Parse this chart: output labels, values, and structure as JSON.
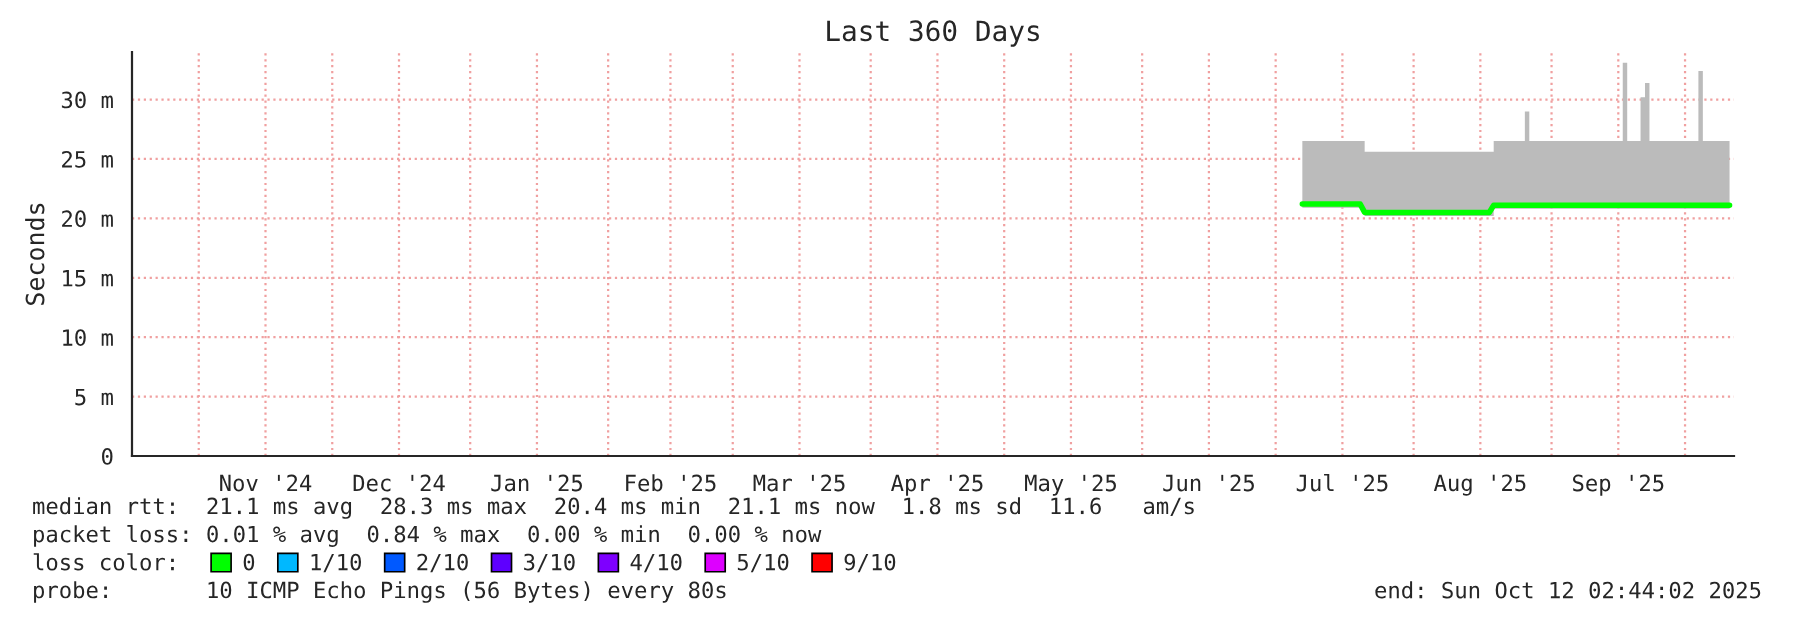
{
  "chart_data": {
    "type": "line",
    "title": "Last 360 Days",
    "ylabel": "Seconds",
    "legend_title": "loss color:",
    "legend": "bottom",
    "grid": true,
    "x": [
      "2025-07-07",
      "2025-07-20",
      "2025-07-21",
      "2025-08-18",
      "2025-08-19",
      "2025-08-25",
      "2025-08-26",
      "2025-08-27",
      "2025-09-16",
      "2025-09-17",
      "2025-09-18",
      "2025-09-20",
      "2025-09-21",
      "2025-09-22",
      "2025-09-23",
      "2025-10-03",
      "2025-10-04",
      "2025-10-05",
      "2025-10-11"
    ],
    "series": [
      {
        "name": "0",
        "color": "#00ff00",
        "values": [
          21.2,
          21.2,
          20.5,
          20.5,
          21.1,
          21.1,
          21.1,
          21.1,
          21.1,
          21.1,
          21.1,
          21.1,
          21.1,
          21.1,
          21.1,
          21.1,
          21.1,
          21.1,
          21.1
        ],
        "lower": [
          20.9,
          20.9,
          20.2,
          20.2,
          20.8,
          20.8,
          20.8,
          20.8,
          20.8,
          20.8,
          20.8,
          20.8,
          20.8,
          20.8,
          20.8,
          20.8,
          20.8,
          20.8,
          20.8
        ],
        "upper": [
          26.5,
          26.5,
          25.6,
          25.6,
          26.5,
          26.5,
          29.0,
          26.5,
          26.5,
          33.1,
          26.5,
          26.5,
          30.2,
          31.4,
          26.5,
          26.5,
          32.4,
          26.5,
          26.5
        ]
      },
      {
        "name": "1/10",
        "color": "#00b8ff",
        "values": [
          null,
          null,
          null,
          null,
          null,
          null,
          null,
          null,
          null,
          null,
          null,
          null,
          null,
          null,
          null,
          null,
          null,
          null,
          null
        ]
      },
      {
        "name": "2/10",
        "color": "#0059ff",
        "values": [
          null,
          null,
          null,
          null,
          null,
          null,
          null,
          null,
          null,
          null,
          null,
          null,
          null,
          null,
          null,
          null,
          null,
          null,
          null
        ]
      },
      {
        "name": "3/10",
        "color": "#5e00ff",
        "values": [
          null,
          null,
          null,
          null,
          null,
          null,
          null,
          null,
          null,
          null,
          null,
          null,
          null,
          null,
          null,
          null,
          null,
          null,
          null
        ]
      },
      {
        "name": "4/10",
        "color": "#7e00ff",
        "values": [
          null,
          null,
          null,
          null,
          null,
          null,
          null,
          null,
          null,
          null,
          null,
          null,
          null,
          null,
          null,
          null,
          null,
          null,
          null
        ]
      },
      {
        "name": "5/10",
        "color": "#dd00ff",
        "values": [
          null,
          null,
          null,
          null,
          null,
          null,
          null,
          null,
          null,
          null,
          null,
          null,
          null,
          null,
          null,
          null,
          null,
          null,
          null
        ]
      },
      {
        "name": "9/10",
        "color": "#ff0000",
        "values": [
          null,
          null,
          null,
          null,
          null,
          null,
          null,
          null,
          null,
          null,
          null,
          null,
          null,
          null,
          null,
          null,
          null,
          null,
          null
        ]
      }
    ],
    "xlim": [
      "2024-10-17",
      "2025-10-12"
    ],
    "xticks": [
      {
        "value": "2024-11-01",
        "label": null
      },
      {
        "value": "2024-11-16",
        "label": "Nov '24"
      },
      {
        "value": "2024-12-01",
        "label": null
      },
      {
        "value": "2024-12-16",
        "label": "Dec '24"
      },
      {
        "value": "2025-01-01",
        "label": null
      },
      {
        "value": "2025-01-16",
        "label": "Jan '25"
      },
      {
        "value": "2025-02-01",
        "label": null
      },
      {
        "value": "2025-02-15",
        "label": "Feb '25"
      },
      {
        "value": "2025-03-01",
        "label": null
      },
      {
        "value": "2025-03-16",
        "label": "Mar '25"
      },
      {
        "value": "2025-04-01",
        "label": null
      },
      {
        "value": "2025-04-16",
        "label": "Apr '25"
      },
      {
        "value": "2025-05-01",
        "label": null
      },
      {
        "value": "2025-05-16",
        "label": "May '25"
      },
      {
        "value": "2025-06-01",
        "label": null
      },
      {
        "value": "2025-06-16",
        "label": "Jun '25"
      },
      {
        "value": "2025-07-01",
        "label": null
      },
      {
        "value": "2025-07-16",
        "label": "Jul '25"
      },
      {
        "value": "2025-08-01",
        "label": null
      },
      {
        "value": "2025-08-16",
        "label": "Aug '25"
      },
      {
        "value": "2025-09-01",
        "label": null
      },
      {
        "value": "2025-09-16",
        "label": "Sep '25"
      },
      {
        "value": "2025-10-01",
        "label": null
      }
    ],
    "ylim": [
      0,
      34
    ],
    "yticks": [
      0,
      {
        "value": 5,
        "label": "5 m"
      },
      {
        "value": 10,
        "label": "10 m"
      },
      {
        "value": 15,
        "label": "15 m"
      },
      {
        "value": 20,
        "label": "20 m"
      },
      {
        "value": 25,
        "label": "25 m"
      },
      {
        "value": 30,
        "label": "30 m"
      }
    ],
    "annotations": [
      "median rtt:  21.1 ms avg  28.3 ms max  20.4 ms min  21.1 ms now  1.8 ms sd  11.6   am/s",
      "packet loss: 0.01 % avg  0.84 % max  0.00 % min  0.00 % now",
      "probe:       10 ICMP Echo Pings (56 Bytes) every 80s",
      "end: Sun Oct 12 02:44:02 2025"
    ]
  }
}
